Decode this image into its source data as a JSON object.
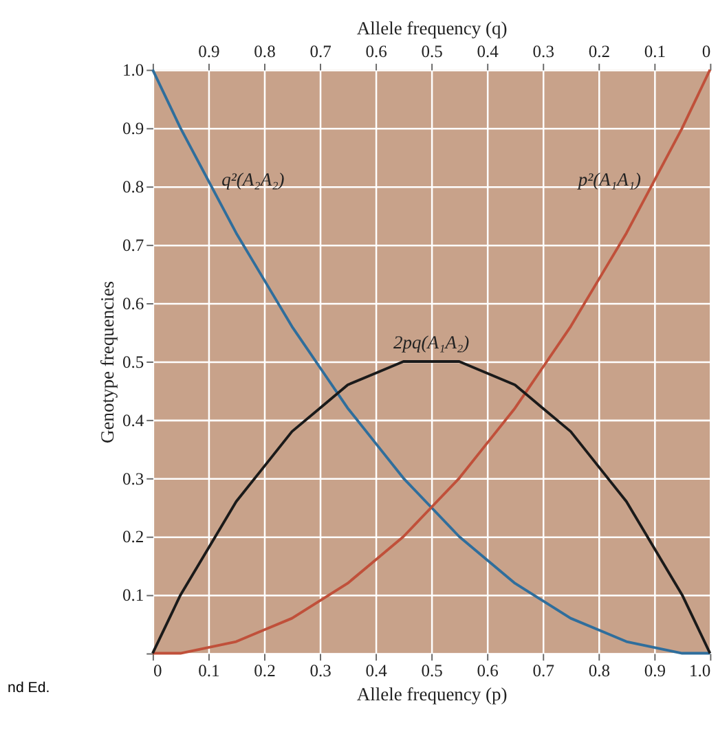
{
  "chart_data": {
    "type": "line",
    "xlabel": "Allele frequency (p)",
    "ylabel": "Genotype frequencies",
    "x2label": "Allele frequency (q)",
    "x": [
      0,
      0.05,
      0.1,
      0.15,
      0.2,
      0.25,
      0.3,
      0.35,
      0.4,
      0.45,
      0.5,
      0.55,
      0.6,
      0.65,
      0.7,
      0.75,
      0.8,
      0.85,
      0.9,
      0.95,
      1
    ],
    "series": [
      {
        "name": "q²(A₂A₂)",
        "color": "#2f6e9c",
        "values": [
          1,
          0.9,
          0.81,
          0.72,
          0.64,
          0.56,
          0.49,
          0.42,
          0.36,
          0.3,
          0.25,
          0.2,
          0.16,
          0.12,
          0.09,
          0.06,
          0.04,
          0.02,
          0.01,
          0,
          0
        ]
      },
      {
        "name": "p²(A₁A₁)",
        "color": "#c0503a",
        "values": [
          0,
          0,
          0.01,
          0.02,
          0.04,
          0.06,
          0.09,
          0.12,
          0.16,
          0.2,
          0.25,
          0.3,
          0.36,
          0.42,
          0.49,
          0.56,
          0.64,
          0.72,
          0.81,
          0.9,
          1
        ]
      },
      {
        "name": "2pq(A₁A₂)",
        "color": "#1a1a1a",
        "values": [
          0,
          0.1,
          0.18,
          0.26,
          0.32,
          0.38,
          0.42,
          0.46,
          0.48,
          0.5,
          0.5,
          0.5,
          0.48,
          0.46,
          0.42,
          0.38,
          0.32,
          0.26,
          0.18,
          0.1,
          0
        ]
      }
    ],
    "xlim": [
      0,
      1
    ],
    "xticks": [
      0,
      0.1,
      0.2,
      0.3,
      0.4,
      0.5,
      0.6,
      0.7,
      0.8,
      0.9,
      {
        "value": 1,
        "label": "1.0"
      }
    ],
    "x2lim": [
      1,
      0
    ],
    "x2ticks": [
      {
        "value": 1,
        "label": null
      },
      0.9,
      0.8,
      0.7,
      0.6,
      0.5,
      0.4,
      0.3,
      0.2,
      0.1,
      0
    ],
    "ylim": [
      0,
      1
    ],
    "yticks": [
      {
        "value": 0,
        "label": null
      },
      0.1,
      0.2,
      0.3,
      0.4,
      0.5,
      0.6,
      0.7,
      0.8,
      0.9,
      {
        "value": 1,
        "label": "1.0"
      }
    ],
    "grid": true,
    "legend": false,
    "line_style": "solid",
    "marker": "none",
    "annotations": [
      "nd Ed."
    ]
  }
}
